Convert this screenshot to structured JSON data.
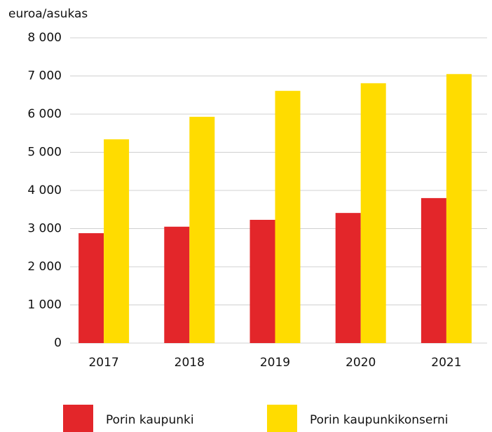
{
  "chart_data": {
    "type": "bar",
    "y_axis_label": "euroa/asukas",
    "categories": [
      "2017",
      "2018",
      "2019",
      "2020",
      "2021"
    ],
    "series": [
      {
        "name": "Porin kaupunki",
        "color": "#e3262a",
        "values": [
          2880,
          3050,
          3230,
          3410,
          3800
        ]
      },
      {
        "name": "Porin kaupunkikonserni",
        "color": "#ffdc00",
        "values": [
          5340,
          5930,
          6610,
          6810,
          7050
        ]
      }
    ],
    "ylim": [
      0,
      8000
    ],
    "yticks": [
      0,
      {
        "value": 1000,
        "label": "1 000"
      },
      {
        "value": 2000,
        "label": "2 000"
      },
      {
        "value": 3000,
        "label": "3 000"
      },
      {
        "value": 4000,
        "label": "4 000"
      },
      {
        "value": 5000,
        "label": "5 000"
      },
      {
        "value": 6000,
        "label": "6 000"
      },
      {
        "value": 7000,
        "label": "7 000"
      },
      {
        "value": 8000,
        "label": "8 000"
      }
    ],
    "grid": true
  }
}
